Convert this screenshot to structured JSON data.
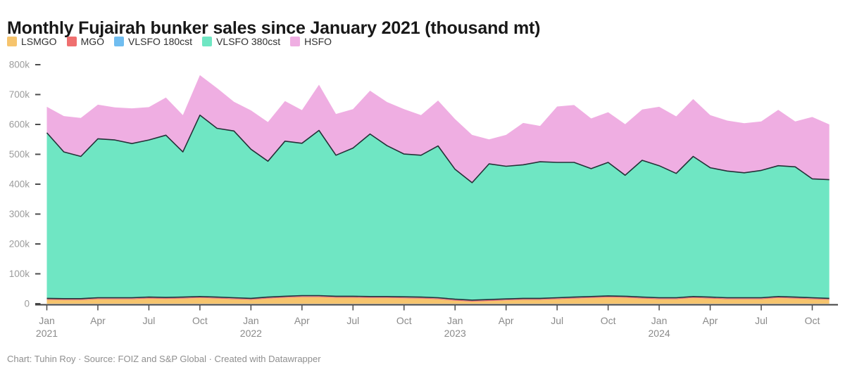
{
  "header": {
    "title": "Monthly Fujairah bunker sales since January 2021 (thousand mt)"
  },
  "footer": {
    "text": "Chart: Tuhin Roy · Source: FOIZ and S&P Global · Created with Datawrapper"
  },
  "chart_data": {
    "type": "area",
    "stacked": true,
    "title": "Monthly Fujairah bunker sales since January 2021 (thousand mt)",
    "unit": "thousand mt",
    "grid": false,
    "legend_position": "top",
    "ylim": [
      0,
      800
    ],
    "x": [
      "Jan 2021",
      "Feb 2021",
      "Mar 2021",
      "Apr 2021",
      "May 2021",
      "Jun 2021",
      "Jul 2021",
      "Aug 2021",
      "Sep 2021",
      "Oct 2021",
      "Nov 2021",
      "Dec 2021",
      "Jan 2022",
      "Feb 2022",
      "Mar 2022",
      "Apr 2022",
      "May 2022",
      "Jun 2022",
      "Jul 2022",
      "Aug 2022",
      "Sep 2022",
      "Oct 2022",
      "Nov 2022",
      "Dec 2022",
      "Jan 2023",
      "Feb 2023",
      "Mar 2023",
      "Apr 2023",
      "May 2023",
      "Jun 2023",
      "Jul 2023",
      "Aug 2023",
      "Sep 2023",
      "Oct 2023",
      "Nov 2023",
      "Dec 2023",
      "Jan 2024",
      "Feb 2024",
      "Mar 2024",
      "Apr 2024",
      "May 2024",
      "Jun 2024",
      "Jul 2024",
      "Aug 2024",
      "Sep 2024",
      "Oct 2024",
      "Nov 2024"
    ],
    "series": [
      {
        "name": "LSMGO",
        "color": "#f6c46d",
        "values": [
          13,
          12,
          12,
          15,
          15,
          15,
          17,
          16,
          17,
          19,
          17,
          15,
          13,
          17,
          20,
          22,
          22,
          20,
          20,
          19,
          19,
          18,
          17,
          15,
          10,
          7,
          9,
          11,
          13,
          13,
          15,
          17,
          19,
          21,
          20,
          17,
          15,
          15,
          19,
          17,
          15,
          15,
          15,
          19,
          17,
          15,
          13
        ]
      },
      {
        "name": "MGO",
        "color": "#ef6f6f",
        "values": [
          3,
          3,
          3,
          3,
          3,
          3,
          3,
          3,
          3,
          3,
          3,
          3,
          3,
          3,
          3,
          3,
          3,
          3,
          3,
          3,
          3,
          3,
          3,
          3,
          3,
          3,
          3,
          3,
          3,
          3,
          3,
          3,
          3,
          3,
          3,
          3,
          3,
          3,
          3,
          3,
          3,
          3,
          3,
          3,
          3,
          3,
          3
        ]
      },
      {
        "name": "VLSFO 180cst",
        "color": "#70bdf0",
        "values": [
          2,
          2,
          2,
          2,
          2,
          2,
          2,
          2,
          2,
          2,
          2,
          2,
          2,
          2,
          2,
          2,
          2,
          2,
          2,
          2,
          2,
          2,
          2,
          2,
          2,
          2,
          2,
          2,
          2,
          2,
          2,
          2,
          2,
          2,
          2,
          2,
          2,
          2,
          2,
          2,
          2,
          2,
          2,
          2,
          2,
          2,
          2
        ]
      },
      {
        "name": "VLSFO 380cst",
        "color": "#6fe6c3",
        "values": [
          554,
          491,
          476,
          532,
          528,
          516,
          526,
          543,
          486,
          607,
          565,
          558,
          499,
          455,
          519,
          510,
          553,
          472,
          496,
          544,
          505,
          478,
          475,
          508,
          435,
          393,
          454,
          444,
          447,
          457,
          453,
          451,
          428,
          447,
          405,
          458,
          442,
          416,
          469,
          433,
          424,
          418,
          426,
          438,
          436,
          398,
          397
        ]
      },
      {
        "name": "HSFO",
        "color": "#efaee2",
        "values": [
          87,
          120,
          129,
          114,
          109,
          118,
          110,
          126,
          123,
          134,
          135,
          98,
          130,
          131,
          134,
          111,
          153,
          138,
          130,
          145,
          146,
          150,
          134,
          152,
          168,
          160,
          82,
          105,
          140,
          120,
          187,
          192,
          168,
          168,
          171,
          170,
          197,
          191,
          192,
          176,
          169,
          166,
          164,
          187,
          152,
          207,
          185
        ]
      }
    ],
    "yticks": [
      {
        "v": 0,
        "label": "0"
      },
      {
        "v": 100,
        "label": "100k"
      },
      {
        "v": 200,
        "label": "200k"
      },
      {
        "v": 300,
        "label": "300k"
      },
      {
        "v": 400,
        "label": "400k"
      },
      {
        "v": 500,
        "label": "500k"
      },
      {
        "v": 600,
        "label": "600k"
      },
      {
        "v": 700,
        "label": "700k"
      },
      {
        "v": 800,
        "label": "800k"
      }
    ],
    "xticks": [
      {
        "index": 0,
        "label": "Jan",
        "year": "2021"
      },
      {
        "index": 3,
        "label": "Apr"
      },
      {
        "index": 6,
        "label": "Jul"
      },
      {
        "index": 9,
        "label": "Oct"
      },
      {
        "index": 12,
        "label": "Jan",
        "year": "2022"
      },
      {
        "index": 15,
        "label": "Apr"
      },
      {
        "index": 18,
        "label": "Jul"
      },
      {
        "index": 21,
        "label": "Oct"
      },
      {
        "index": 24,
        "label": "Jan",
        "year": "2023"
      },
      {
        "index": 27,
        "label": "Apr"
      },
      {
        "index": 30,
        "label": "Jul"
      },
      {
        "index": 33,
        "label": "Oct"
      },
      {
        "index": 36,
        "label": "Jan",
        "year": "2024"
      },
      {
        "index": 39,
        "label": "Apr"
      },
      {
        "index": 42,
        "label": "Jul"
      },
      {
        "index": 45,
        "label": "Oct"
      }
    ],
    "style": {
      "boundary_stroke": "#243137",
      "axis_line": "#3f3f3f",
      "tick_color": "#4d4d4d",
      "ytick_label_color": "#9c9c9c",
      "xtick_label_color": "#8a8a8a"
    }
  }
}
